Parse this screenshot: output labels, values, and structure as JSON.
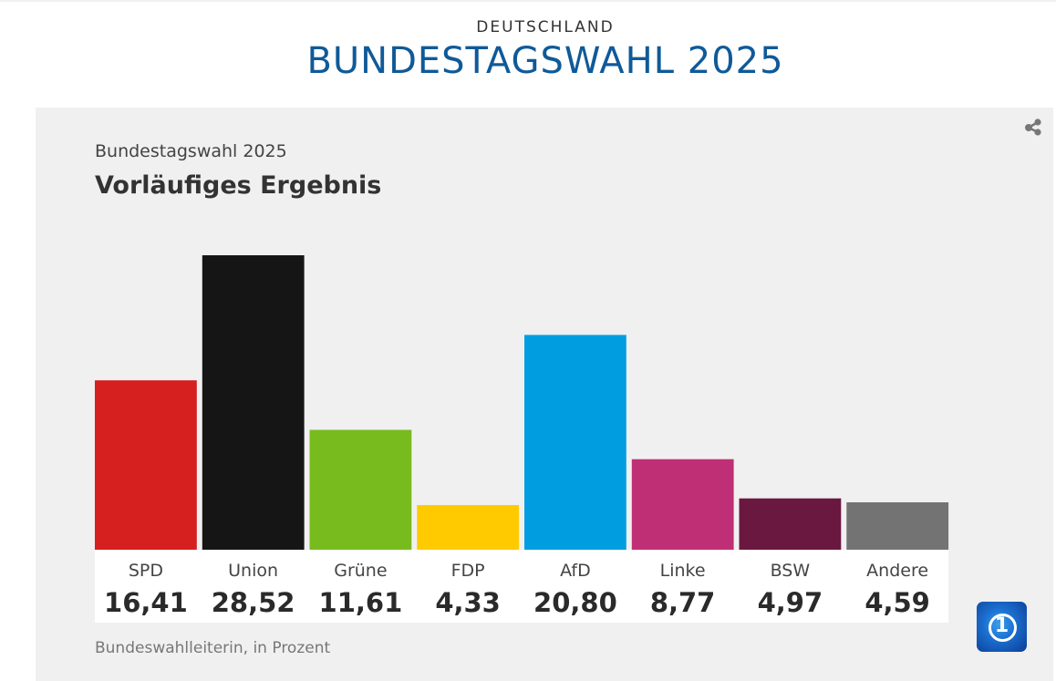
{
  "header": {
    "kicker": "DEUTSCHLAND",
    "headline": "BUNDESTAGSWAHL 2025"
  },
  "widget": {
    "subtitle": "Bundestagswahl 2025",
    "title": "Vorläufiges Ergebnis",
    "source": "Bundeswahlleiterin, in Prozent",
    "share_icon": "share-icon",
    "logo_icon": "tagesschau-logo-icon",
    "logo_text": "1"
  },
  "chart_data": {
    "type": "bar",
    "title": "Vorläufiges Ergebnis",
    "subtitle": "Bundestagswahl 2025",
    "xlabel": "",
    "ylabel": "Prozent",
    "ylim": [
      0,
      28.52
    ],
    "grid": false,
    "legend": "none",
    "categories": [
      "SPD",
      "Union",
      "Grüne",
      "FDP",
      "AfD",
      "Linke",
      "BSW",
      "Andere"
    ],
    "values": [
      16.41,
      28.52,
      11.61,
      4.33,
      20.8,
      8.77,
      4.97,
      4.59
    ],
    "value_labels": [
      "16,41",
      "28,52",
      "11,61",
      "4,33",
      "20,80",
      "8,77",
      "4,97",
      "4,59"
    ],
    "colors": [
      "#d61f1f",
      "#151515",
      "#78bb1e",
      "#ffcb00",
      "#009ee0",
      "#bf2f75",
      "#6a1840",
      "#737373"
    ]
  }
}
